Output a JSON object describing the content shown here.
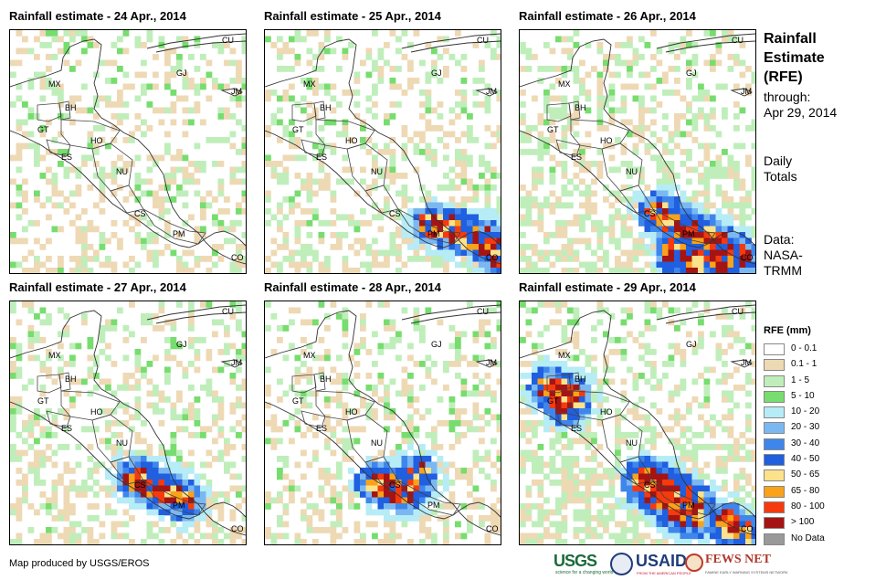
{
  "panels": [
    {
      "title": "Rainfall estimate - 24 Apr., 2014",
      "seed": 11,
      "intensity": 1,
      "hot": []
    },
    {
      "title": "Rainfall estimate - 25 Apr., 2014",
      "seed": 23,
      "intensity": 2,
      "hot": [
        "pa-east"
      ]
    },
    {
      "title": "Rainfall estimate - 26 Apr., 2014",
      "seed": 37,
      "intensity": 3,
      "hot": [
        "cs-pa",
        "se"
      ]
    },
    {
      "title": "Rainfall estimate - 27 Apr., 2014",
      "seed": 41,
      "intensity": 2,
      "hot": [
        "cs-south"
      ]
    },
    {
      "title": "Rainfall estimate - 28 Apr., 2014",
      "seed": 53,
      "intensity": 1,
      "hot": [
        "cs-north"
      ]
    },
    {
      "title": "Rainfall estimate - 29 Apr., 2014",
      "seed": 67,
      "intensity": 3,
      "hot": [
        "gt",
        "cs-south",
        "se-coast"
      ]
    }
  ],
  "country_labels": [
    "CU",
    "GJ",
    "MX",
    "BH",
    "JM",
    "GT",
    "HO",
    "ES",
    "NU",
    "CS",
    "PM",
    "CO"
  ],
  "sidebar": {
    "title_lines": [
      "Rainfall",
      "Estimate",
      "(RFE)"
    ],
    "through_label": "through:",
    "through_date": "Apr 29, 2014",
    "daily": [
      "Daily",
      "Totals"
    ],
    "data_source": [
      "Data:",
      "NASA-",
      "TRMM"
    ]
  },
  "legend": {
    "title": "RFE (mm)",
    "items": [
      {
        "label": "0 - 0.1",
        "color": "#ffffff"
      },
      {
        "label": "0.1 - 1",
        "color": "#eed9b5"
      },
      {
        "label": "1 - 5",
        "color": "#bfeebb"
      },
      {
        "label": "5 - 10",
        "color": "#77dd6e"
      },
      {
        "label": "10 - 20",
        "color": "#b6ecf6"
      },
      {
        "label": "20 - 30",
        "color": "#7bb8f2"
      },
      {
        "label": "30 - 40",
        "color": "#3f86ec"
      },
      {
        "label": "40 - 50",
        "color": "#1f5fe0"
      },
      {
        "label": "50 - 65",
        "color": "#fce28a"
      },
      {
        "label": "65 - 80",
        "color": "#f9a21a"
      },
      {
        "label": "80 - 100",
        "color": "#f53a0e"
      },
      {
        "label": "> 100",
        "color": "#a51414"
      },
      {
        "label": "No Data",
        "color": "#999999"
      }
    ]
  },
  "credit": "Map produced by USGS/EROS",
  "logos": {
    "usgs": "USGS",
    "usgs_tag": "science for a changing world",
    "usaid": "USAID",
    "usaid_tag": "FROM THE AMERICAN PEOPLE",
    "fews": "FEWS NET",
    "fews_tag": "FAMINE EARLY WARNING SYSTEMS NETWORK"
  }
}
